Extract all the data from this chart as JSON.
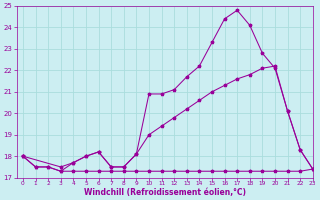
{
  "xlabel": "Windchill (Refroidissement éolien,°C)",
  "background_color": "#cceef2",
  "line_color": "#990099",
  "grid_color": "#aadddd",
  "ylim": [
    17,
    25
  ],
  "xlim": [
    -0.5,
    23
  ],
  "yticks": [
    17,
    18,
    19,
    20,
    21,
    22,
    23,
    24,
    25
  ],
  "xticks": [
    0,
    1,
    2,
    3,
    4,
    5,
    6,
    7,
    8,
    9,
    10,
    11,
    12,
    13,
    14,
    15,
    16,
    17,
    18,
    19,
    20,
    21,
    22,
    23
  ],
  "line1_x": [
    0,
    1,
    2,
    3,
    4,
    5,
    6,
    7,
    8,
    9,
    10,
    11,
    12,
    13,
    14,
    15,
    16,
    17,
    18,
    19,
    20,
    21,
    22,
    23
  ],
  "line1_y": [
    18.0,
    17.5,
    17.5,
    17.3,
    17.7,
    18.0,
    18.2,
    17.5,
    17.5,
    18.1,
    20.9,
    20.9,
    21.1,
    21.7,
    22.2,
    23.3,
    24.4,
    24.8,
    24.1,
    22.8,
    22.1,
    20.1,
    18.3,
    17.4
  ],
  "line2_x": [
    0,
    3,
    4,
    5,
    6,
    7,
    8,
    9,
    10,
    11,
    12,
    13,
    14,
    15,
    16,
    17,
    18,
    19,
    20,
    21,
    22,
    23
  ],
  "line2_y": [
    18.0,
    17.5,
    17.7,
    18.0,
    18.2,
    17.5,
    17.5,
    18.1,
    19.0,
    19.4,
    19.8,
    20.2,
    20.6,
    21.0,
    21.3,
    21.6,
    21.8,
    22.1,
    22.2,
    20.1,
    18.3,
    17.4
  ],
  "line3_x": [
    0,
    1,
    2,
    3,
    4,
    5,
    6,
    7,
    8,
    9,
    10,
    11,
    12,
    13,
    14,
    15,
    16,
    17,
    18,
    19,
    20,
    21,
    22,
    23
  ],
  "line3_y": [
    18.0,
    17.5,
    17.5,
    17.3,
    17.3,
    17.3,
    17.3,
    17.3,
    17.3,
    17.3,
    17.3,
    17.3,
    17.3,
    17.3,
    17.3,
    17.3,
    17.3,
    17.3,
    17.3,
    17.3,
    17.3,
    17.3,
    17.3,
    17.4
  ]
}
